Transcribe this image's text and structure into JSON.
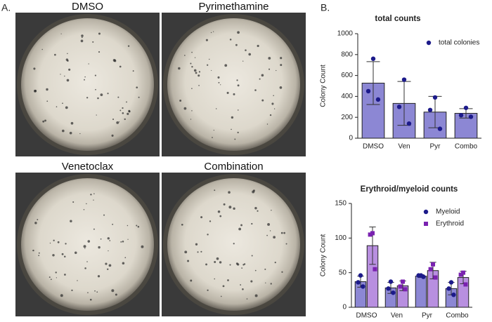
{
  "panel_a": {
    "label": "A.",
    "images": [
      "DMSO",
      "Pyrimethamine",
      "Venetoclax",
      "Combination"
    ]
  },
  "panel_b": {
    "label": "B."
  },
  "chart_data": [
    {
      "type": "bar",
      "title": "total counts",
      "y_label": "Colony Count",
      "categories": [
        "DMSO",
        "Ven",
        "Pyr",
        "Combo"
      ],
      "series": [
        {
          "name": "total colonies",
          "color": "#8c87d4",
          "point_color": "#1c1a8a",
          "marker": "circle",
          "values": [
            527,
            333,
            250,
            238
          ],
          "errors": [
            205,
            210,
            150,
            45
          ],
          "points": [
            [
              760,
              450,
              370
            ],
            [
              560,
              300,
              140
            ],
            [
              390,
              270,
              90
            ],
            [
              290,
              220,
              205
            ]
          ]
        }
      ],
      "ylim": [
        0,
        1000
      ],
      "yticks": [
        0,
        200,
        400,
        600,
        800,
        1000
      ],
      "legend": "upper right",
      "grid": false
    },
    {
      "type": "bar",
      "title": "Erythroid/myeloid counts",
      "y_label": "Colony Count",
      "categories": [
        "DMSO",
        "Ven",
        "Pyr",
        "Combo"
      ],
      "series": [
        {
          "name": "Myeloid",
          "color": "#8c87d4",
          "point_color": "#1c1a8a",
          "marker": "circle",
          "values": [
            37,
            28,
            45,
            27
          ],
          "errors": [
            8,
            8,
            2,
            9
          ],
          "points": [
            [
              46,
              36,
              30
            ],
            [
              37,
              27,
              21
            ],
            [
              46,
              46,
              44
            ],
            [
              36,
              27,
              18
            ]
          ]
        },
        {
          "name": "Erythroid",
          "color": "#b88fe0",
          "point_color": "#7a22b0",
          "marker": "square",
          "values": [
            89,
            31,
            53,
            43
          ],
          "errors": [
            27,
            7,
            12,
            9
          ],
          "points": [
            [
              107,
              105,
              55
            ],
            [
              37,
              30,
              26
            ],
            [
              62,
              55,
              43
            ],
            [
              50,
              47,
              33
            ]
          ]
        }
      ],
      "ylim": [
        0,
        150
      ],
      "yticks": [
        0,
        50,
        100,
        150
      ],
      "legend": "upper right",
      "grid": false
    }
  ]
}
